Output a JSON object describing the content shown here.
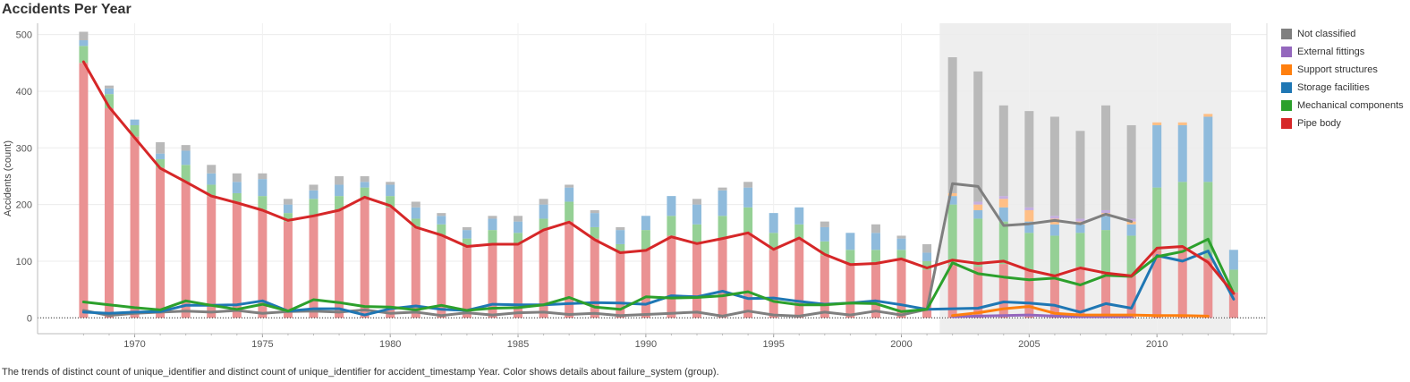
{
  "header": {
    "title": "Accidents Per Year"
  },
  "footer": {
    "caption": "The trends of distinct count of unique_identifier and distinct count of unique_identifier for accident_timestamp Year.  Color shows details about failure_system (group)."
  },
  "chart_data": {
    "type": "bar",
    "title": "Accidents Per Year",
    "xlabel": "",
    "ylabel": "Accidents (count)",
    "ylim": [
      -28,
      520
    ],
    "xlim": [
      1966.2,
      2014.3
    ],
    "xticks": [
      1970,
      1975,
      1980,
      1985,
      1990,
      1995,
      2000,
      2005,
      2010
    ],
    "yticks": [
      0,
      100,
      200,
      300,
      400,
      500
    ],
    "grid": true,
    "legend_position": "right",
    "highlight_range": [
      2001.5,
      2012.9
    ],
    "years": [
      1968,
      1969,
      1970,
      1971,
      1972,
      1973,
      1974,
      1975,
      1976,
      1977,
      1978,
      1979,
      1980,
      1981,
      1982,
      1983,
      1984,
      1985,
      1986,
      1987,
      1988,
      1989,
      1990,
      1991,
      1992,
      1993,
      1994,
      1995,
      1996,
      1997,
      1998,
      1999,
      2000,
      2001,
      2002,
      2003,
      2004,
      2005,
      2006,
      2007,
      2008,
      2009,
      2010,
      2011,
      2012,
      2013
    ],
    "legend": [
      "Not classified",
      "External fittings",
      "Support structures",
      "Storage facilities",
      "Mechanical components",
      "Pipe body"
    ],
    "colors": {
      "Not classified": "#7f7f7f",
      "External fittings": "#9467bd",
      "Support structures": "#ff7f0e",
      "Storage facilities": "#1f77b4",
      "Mechanical components": "#2ca02c",
      "Pipe body": "#d62728"
    },
    "bar_colors": {
      "Not classified": "#b9b9b9",
      "External fittings": "#c5aee0",
      "Support structures": "#ffbf86",
      "Storage facilities": "#8fbbdc",
      "Mechanical components": "#95d095",
      "Pipe body": "#ea9293"
    },
    "bar_series": [
      {
        "name": "Pipe body",
        "values": [
          450,
          370,
          320,
          265,
          240,
          215,
          205,
          190,
          170,
          180,
          190,
          210,
          195,
          160,
          145,
          125,
          130,
          130,
          155,
          170,
          140,
          115,
          120,
          145,
          130,
          140,
          150,
          120,
          140,
          110,
          95,
          95,
          105,
          85,
          95,
          90,
          95,
          85,
          75,
          90,
          80,
          75,
          120,
          125,
          105,
          45
        ]
      },
      {
        "name": "Mechanical components",
        "values": [
          30,
          25,
          20,
          15,
          30,
          20,
          15,
          25,
          15,
          30,
          25,
          20,
          20,
          15,
          20,
          15,
          25,
          20,
          20,
          35,
          20,
          15,
          35,
          35,
          35,
          40,
          45,
          30,
          25,
          25,
          25,
          25,
          15,
          15,
          105,
          85,
          75,
          65,
          70,
          60,
          75,
          70,
          110,
          115,
          135,
          40
        ]
      },
      {
        "name": "Storage facilities",
        "values": [
          10,
          10,
          10,
          10,
          25,
          20,
          20,
          30,
          15,
          15,
          20,
          10,
          20,
          20,
          15,
          15,
          20,
          20,
          25,
          25,
          25,
          25,
          25,
          35,
          35,
          45,
          35,
          35,
          30,
          25,
          30,
          30,
          20,
          15,
          15,
          15,
          25,
          20,
          20,
          15,
          25,
          20,
          110,
          100,
          115,
          35
        ]
      },
      {
        "name": "Support structures",
        "values": [
          0,
          0,
          0,
          0,
          0,
          0,
          0,
          0,
          0,
          0,
          0,
          0,
          0,
          0,
          0,
          0,
          0,
          0,
          0,
          0,
          0,
          0,
          0,
          0,
          0,
          0,
          0,
          0,
          0,
          0,
          0,
          0,
          0,
          0,
          5,
          10,
          15,
          20,
          10,
          5,
          5,
          5,
          5,
          5,
          5,
          0
        ]
      },
      {
        "name": "External fittings",
        "values": [
          0,
          0,
          0,
          0,
          0,
          0,
          0,
          0,
          0,
          0,
          0,
          0,
          0,
          0,
          0,
          0,
          0,
          0,
          0,
          0,
          0,
          0,
          0,
          0,
          0,
          0,
          0,
          0,
          0,
          0,
          0,
          0,
          0,
          0,
          0,
          5,
          5,
          5,
          5,
          5,
          5,
          5,
          0,
          0,
          0,
          0
        ]
      },
      {
        "name": "Not classified",
        "values": [
          15,
          5,
          0,
          20,
          10,
          15,
          15,
          10,
          10,
          10,
          15,
          10,
          5,
          10,
          5,
          5,
          5,
          10,
          10,
          5,
          5,
          5,
          0,
          0,
          10,
          5,
          10,
          0,
          0,
          10,
          0,
          15,
          5,
          15,
          240,
          230,
          160,
          170,
          175,
          155,
          185,
          165,
          0,
          0,
          0,
          0
        ]
      }
    ],
    "line_series": [
      {
        "name": "Pipe body",
        "values": [
          452,
          372,
          318,
          264,
          240,
          215,
          203,
          190,
          172,
          180,
          190,
          213,
          198,
          160,
          146,
          126,
          130,
          130,
          155,
          169,
          138,
          115,
          119,
          143,
          131,
          140,
          150,
          121,
          141,
          112,
          94,
          96,
          104,
          88,
          102,
          96,
          100,
          84,
          74,
          88,
          79,
          74,
          123,
          126,
          98,
          43
        ]
      },
      {
        "name": "Mechanical components",
        "values": [
          28,
          23,
          18,
          14,
          30,
          22,
          15,
          24,
          12,
          32,
          27,
          20,
          19,
          14,
          22,
          13,
          17,
          18,
          23,
          36,
          19,
          15,
          37,
          35,
          36,
          39,
          46,
          29,
          23,
          23,
          26,
          25,
          11,
          15,
          97,
          78,
          72,
          67,
          70,
          58,
          75,
          73,
          108,
          117,
          139,
          43
        ]
      },
      {
        "name": "Storage facilities",
        "values": [
          10,
          8,
          10,
          11,
          22,
          22,
          23,
          30,
          12,
          16,
          16,
          5,
          16,
          21,
          15,
          13,
          24,
          23,
          23,
          25,
          27,
          26,
          24,
          39,
          37,
          47,
          34,
          35,
          29,
          24,
          26,
          30,
          23,
          15,
          16,
          17,
          28,
          26,
          22,
          10,
          25,
          17,
          110,
          100,
          118,
          33
        ]
      },
      {
        "name": "Support structures",
        "values": [
          null,
          null,
          null,
          null,
          null,
          null,
          null,
          null,
          null,
          null,
          null,
          null,
          null,
          null,
          null,
          null,
          null,
          null,
          null,
          null,
          null,
          null,
          null,
          null,
          null,
          null,
          null,
          null,
          null,
          null,
          null,
          null,
          null,
          null,
          4,
          9,
          16,
          20,
          8,
          5,
          5,
          5,
          4,
          4,
          3,
          null
        ]
      },
      {
        "name": "External fittings",
        "values": [
          null,
          null,
          null,
          null,
          null,
          null,
          null,
          null,
          null,
          null,
          null,
          null,
          null,
          null,
          null,
          null,
          null,
          null,
          null,
          null,
          null,
          null,
          null,
          null,
          null,
          null,
          null,
          null,
          null,
          null,
          null,
          null,
          null,
          null,
          2,
          3,
          4,
          5,
          3,
          2,
          2,
          2,
          null,
          null,
          null,
          null
        ]
      },
      {
        "name": "Not classified",
        "values": [
          13,
          4,
          8,
          10,
          12,
          10,
          13,
          8,
          11,
          12,
          10,
          14,
          8,
          10,
          4,
          9,
          5,
          9,
          10,
          6,
          8,
          4,
          6,
          8,
          10,
          3,
          12,
          5,
          3,
          10,
          5,
          12,
          5,
          15,
          237,
          232,
          163,
          166,
          172,
          166,
          183,
          170,
          null,
          null,
          null,
          null
        ]
      }
    ]
  }
}
